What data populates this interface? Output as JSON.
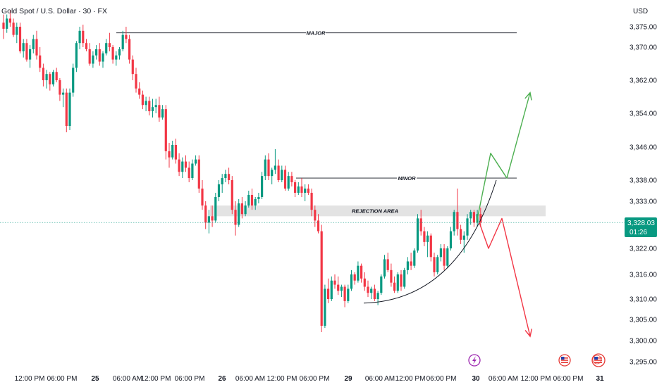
{
  "header": {
    "title": "Gold Spot / U.S. Dollar · 30 · FX",
    "currency": "USD"
  },
  "current_price": {
    "price_label": "3,328.03",
    "countdown": "01:26",
    "value": 3328.03,
    "color": "#089981"
  },
  "events": {
    "flash_icon_color": "#9c27b0",
    "flag_icon_color": "#e53935"
  },
  "chart_data": {
    "type": "candlestick",
    "symbol": "XAUUSD",
    "interval": "30",
    "up_color": "#089981",
    "down_color": "#f23645",
    "y_axis": {
      "ticks": [
        {
          "label": "3,375.00",
          "value": 3375.0
        },
        {
          "label": "3,370.00",
          "value": 3370.0
        },
        {
          "label": "3,362.00",
          "value": 3362.0
        },
        {
          "label": "3,354.00",
          "value": 3354.0
        },
        {
          "label": "3,346.00",
          "value": 3346.0
        },
        {
          "label": "3,338.00",
          "value": 3338.0
        },
        {
          "label": "3,333.00",
          "value": 3333.0
        },
        {
          "label": "3,322.00",
          "value": 3322.0
        },
        {
          "label": "3,316.00",
          "value": 3316.0
        },
        {
          "label": "3,310.00",
          "value": 3310.0
        },
        {
          "label": "3,305.00",
          "value": 3305.0
        },
        {
          "label": "3,300.00",
          "value": 3300.0
        },
        {
          "label": "3,295.00",
          "value": 3295.0
        }
      ]
    },
    "x_axis": {
      "ticks": [
        {
          "label": "12:00 PM",
          "bold": false
        },
        {
          "label": "06:00 PM",
          "bold": false
        },
        {
          "label": "25",
          "bold": true
        },
        {
          "label": "06:00 AM",
          "bold": false
        },
        {
          "label": "12:00 PM",
          "bold": false
        },
        {
          "label": "06:00 PM",
          "bold": false
        },
        {
          "label": "26",
          "bold": true
        },
        {
          "label": "06:00 AM",
          "bold": false
        },
        {
          "label": "12:00 PM",
          "bold": false
        },
        {
          "label": "06:00 PM",
          "bold": false
        },
        {
          "label": "29",
          "bold": true
        },
        {
          "label": "06:00 AM",
          "bold": false
        },
        {
          "label": "12:00 PM",
          "bold": false
        },
        {
          "label": "06:00 PM",
          "bold": false
        },
        {
          "label": "30",
          "bold": true
        },
        {
          "label": "06:00 AM",
          "bold": false
        },
        {
          "label": "12:00 PM",
          "bold": false
        },
        {
          "label": "06:00 PM",
          "bold": false
        },
        {
          "label": "31",
          "bold": true
        }
      ]
    },
    "levels": [
      {
        "label": "MAJOR",
        "value": 3373.5
      },
      {
        "label": "MINOR",
        "value": 3338.5
      }
    ],
    "zone": {
      "label": "REJECTION AREA",
      "low": 3329.5,
      "high": 3332.0
    },
    "projection_up": {
      "color": "#4caf50",
      "points": [
        3328.0,
        3344.5,
        3338.5,
        3359.0
      ]
    },
    "projection_down": {
      "color": "#f23645",
      "points": [
        3328.0,
        3322.0,
        3329.0,
        3301.0
      ]
    },
    "trend_curve": {
      "start": 3309.0,
      "end": 3338.0
    },
    "candles": [
      [
        3376.0,
        3378.0,
        3372.0,
        3374.5
      ],
      [
        3374.5,
        3378.0,
        3373.5,
        3377.0
      ],
      [
        3377.0,
        3379.0,
        3375.0,
        3376.0
      ],
      [
        3376.0,
        3377.0,
        3372.5,
        3373.0
      ],
      [
        3373.0,
        3376.0,
        3371.0,
        3375.0
      ],
      [
        3375.0,
        3376.0,
        3368.5,
        3369.0
      ],
      [
        3369.0,
        3372.0,
        3367.5,
        3371.0
      ],
      [
        3371.0,
        3372.0,
        3366.5,
        3367.0
      ],
      [
        3367.0,
        3370.5,
        3365.0,
        3369.5
      ],
      [
        3369.5,
        3373.0,
        3368.5,
        3372.0
      ],
      [
        3372.0,
        3374.0,
        3367.0,
        3368.0
      ],
      [
        3368.0,
        3370.0,
        3364.0,
        3365.0
      ],
      [
        3365.0,
        3366.0,
        3360.5,
        3362.0
      ],
      [
        3362.0,
        3364.5,
        3360.0,
        3363.5
      ],
      [
        3363.5,
        3364.0,
        3359.5,
        3361.0
      ],
      [
        3361.0,
        3364.5,
        3360.5,
        3364.0
      ],
      [
        3364.0,
        3365.0,
        3361.5,
        3362.0
      ],
      [
        3362.0,
        3362.5,
        3357.0,
        3358.5
      ],
      [
        3358.5,
        3360.0,
        3355.5,
        3359.0
      ],
      [
        3359.0,
        3360.0,
        3349.5,
        3351.0
      ],
      [
        3351.0,
        3360.0,
        3350.0,
        3359.0
      ],
      [
        3359.0,
        3366.0,
        3358.0,
        3365.0
      ],
      [
        3365.0,
        3371.5,
        3364.0,
        3371.0
      ],
      [
        3371.0,
        3375.0,
        3369.5,
        3374.0
      ],
      [
        3374.0,
        3375.5,
        3370.0,
        3371.0
      ],
      [
        3371.0,
        3372.0,
        3369.0,
        3369.5
      ],
      [
        3369.5,
        3371.0,
        3365.5,
        3366.0
      ],
      [
        3366.0,
        3369.0,
        3365.0,
        3368.0
      ],
      [
        3368.0,
        3370.5,
        3367.0,
        3369.5
      ],
      [
        3369.5,
        3371.0,
        3365.5,
        3366.5
      ],
      [
        3366.5,
        3369.0,
        3365.0,
        3368.5
      ],
      [
        3368.5,
        3372.0,
        3368.0,
        3371.0
      ],
      [
        3371.0,
        3373.5,
        3369.0,
        3370.0
      ],
      [
        3370.0,
        3370.5,
        3366.0,
        3367.0
      ],
      [
        3367.0,
        3369.0,
        3365.5,
        3368.0
      ],
      [
        3368.0,
        3370.0,
        3367.0,
        3369.5
      ],
      [
        3369.5,
        3374.0,
        3369.0,
        3373.0
      ],
      [
        3373.0,
        3375.0,
        3371.0,
        3372.0
      ],
      [
        3372.0,
        3373.0,
        3366.0,
        3367.0
      ],
      [
        3367.0,
        3368.0,
        3362.0,
        3363.5
      ],
      [
        3363.5,
        3365.0,
        3359.0,
        3360.0
      ],
      [
        3360.0,
        3361.5,
        3357.5,
        3358.5
      ],
      [
        3358.5,
        3359.5,
        3355.0,
        3356.0
      ],
      [
        3356.0,
        3358.0,
        3354.5,
        3357.0
      ],
      [
        3357.0,
        3358.0,
        3353.5,
        3354.5
      ],
      [
        3354.5,
        3357.5,
        3353.0,
        3355.5
      ],
      [
        3355.5,
        3357.5,
        3354.0,
        3356.0
      ],
      [
        3356.0,
        3358.0,
        3352.0,
        3353.0
      ],
      [
        3353.0,
        3356.0,
        3352.5,
        3355.0
      ],
      [
        3355.0,
        3356.0,
        3343.0,
        3345.0
      ],
      [
        3345.0,
        3347.0,
        3341.0,
        3343.5
      ],
      [
        3343.5,
        3347.5,
        3343.0,
        3346.5
      ],
      [
        3346.5,
        3348.0,
        3342.0,
        3343.0
      ],
      [
        3343.0,
        3344.5,
        3339.0,
        3340.0
      ],
      [
        3340.0,
        3343.5,
        3338.5,
        3342.5
      ],
      [
        3342.5,
        3344.0,
        3340.0,
        3341.0
      ],
      [
        3341.0,
        3342.5,
        3337.5,
        3338.5
      ],
      [
        3338.5,
        3343.0,
        3338.0,
        3342.0
      ],
      [
        3342.0,
        3344.0,
        3341.5,
        3343.0
      ],
      [
        3343.0,
        3344.0,
        3335.0,
        3336.0
      ],
      [
        3336.0,
        3338.0,
        3331.0,
        3332.0
      ],
      [
        3332.0,
        3333.0,
        3326.5,
        3328.0
      ],
      [
        3328.0,
        3331.0,
        3325.5,
        3329.5
      ],
      [
        3329.5,
        3332.0,
        3327.0,
        3328.5
      ],
      [
        3328.5,
        3335.0,
        3328.0,
        3334.0
      ],
      [
        3334.0,
        3338.0,
        3333.0,
        3337.0
      ],
      [
        3337.0,
        3339.5,
        3335.0,
        3338.5
      ],
      [
        3338.5,
        3340.5,
        3337.5,
        3339.5
      ],
      [
        3339.5,
        3341.0,
        3337.0,
        3338.0
      ],
      [
        3338.0,
        3339.0,
        3330.0,
        3331.0
      ],
      [
        3331.0,
        3333.0,
        3325.0,
        3327.5
      ],
      [
        3327.5,
        3333.5,
        3327.0,
        3332.5
      ],
      [
        3332.5,
        3334.0,
        3329.0,
        3330.0
      ],
      [
        3330.0,
        3333.0,
        3329.5,
        3332.0
      ],
      [
        3332.0,
        3335.5,
        3331.5,
        3334.5
      ],
      [
        3334.5,
        3336.0,
        3331.0,
        3332.0
      ],
      [
        3332.0,
        3334.0,
        3331.0,
        3333.5
      ],
      [
        3333.5,
        3335.0,
        3332.5,
        3334.0
      ],
      [
        3334.0,
        3340.0,
        3333.5,
        3339.0
      ],
      [
        3339.0,
        3344.0,
        3338.0,
        3343.0
      ],
      [
        3343.0,
        3344.5,
        3338.0,
        3339.0
      ],
      [
        3339.0,
        3341.0,
        3337.0,
        3340.5
      ],
      [
        3340.5,
        3345.5,
        3339.5,
        3341.5
      ],
      [
        3341.5,
        3343.0,
        3337.5,
        3338.0
      ],
      [
        3338.0,
        3341.5,
        3337.5,
        3340.5
      ],
      [
        3340.5,
        3341.5,
        3335.5,
        3336.0
      ],
      [
        3336.0,
        3340.0,
        3335.5,
        3339.0
      ],
      [
        3339.0,
        3340.0,
        3336.5,
        3337.5
      ],
      [
        3337.5,
        3338.0,
        3334.0,
        3335.0
      ],
      [
        3335.0,
        3337.5,
        3334.5,
        3336.5
      ],
      [
        3336.5,
        3338.5,
        3334.0,
        3335.0
      ],
      [
        3335.0,
        3337.0,
        3333.0,
        3336.0
      ],
      [
        3336.0,
        3337.0,
        3334.5,
        3335.0
      ],
      [
        3335.0,
        3336.0,
        3329.5,
        3331.0
      ],
      [
        3331.0,
        3332.0,
        3327.0,
        3328.5
      ],
      [
        3328.5,
        3330.0,
        3325.5,
        3326.0
      ],
      [
        3326.0,
        3327.5,
        3302.0,
        3303.5
      ],
      [
        3303.5,
        3313.5,
        3303.0,
        3312.5
      ],
      [
        3312.5,
        3315.0,
        3309.0,
        3310.0
      ],
      [
        3310.0,
        3315.5,
        3309.5,
        3314.5
      ],
      [
        3314.5,
        3316.0,
        3312.5,
        3313.5
      ],
      [
        3313.5,
        3315.5,
        3311.0,
        3312.0
      ],
      [
        3312.0,
        3313.5,
        3310.5,
        3313.0
      ],
      [
        3313.0,
        3313.5,
        3308.0,
        3309.5
      ],
      [
        3309.5,
        3313.5,
        3309.0,
        3312.5
      ],
      [
        3312.5,
        3317.0,
        3312.0,
        3316.0
      ],
      [
        3316.0,
        3316.5,
        3313.5,
        3314.5
      ],
      [
        3314.5,
        3319.0,
        3314.0,
        3318.0
      ],
      [
        3318.0,
        3318.5,
        3314.0,
        3315.0
      ],
      [
        3315.0,
        3316.5,
        3312.0,
        3313.0
      ],
      [
        3313.0,
        3314.5,
        3310.5,
        3311.5
      ],
      [
        3311.5,
        3313.0,
        3310.0,
        3312.5
      ],
      [
        3312.5,
        3313.5,
        3309.5,
        3310.0
      ],
      [
        3310.0,
        3312.0,
        3308.5,
        3311.5
      ],
      [
        3311.5,
        3316.0,
        3311.0,
        3315.5
      ],
      [
        3315.5,
        3320.5,
        3315.0,
        3319.5
      ],
      [
        3319.5,
        3321.0,
        3316.5,
        3317.0
      ],
      [
        3317.0,
        3318.5,
        3313.0,
        3314.0
      ],
      [
        3314.0,
        3315.5,
        3311.5,
        3312.0
      ],
      [
        3312.0,
        3316.5,
        3311.5,
        3316.0
      ],
      [
        3316.0,
        3317.0,
        3312.0,
        3313.0
      ],
      [
        3313.0,
        3317.5,
        3312.5,
        3317.0
      ],
      [
        3317.0,
        3320.0,
        3316.0,
        3319.0
      ],
      [
        3319.0,
        3321.0,
        3317.0,
        3318.0
      ],
      [
        3318.0,
        3322.0,
        3317.5,
        3321.5
      ],
      [
        3321.5,
        3330.0,
        3321.0,
        3329.0
      ],
      [
        3329.0,
        3331.0,
        3325.0,
        3326.0
      ],
      [
        3326.0,
        3327.0,
        3322.5,
        3323.5
      ],
      [
        3323.5,
        3326.0,
        3320.0,
        3325.0
      ],
      [
        3325.0,
        3325.5,
        3319.0,
        3320.0
      ],
      [
        3320.0,
        3321.0,
        3315.5,
        3316.5
      ],
      [
        3316.5,
        3320.5,
        3316.0,
        3320.0
      ],
      [
        3320.0,
        3323.0,
        3319.0,
        3322.0
      ],
      [
        3322.0,
        3323.0,
        3317.0,
        3318.0
      ],
      [
        3318.0,
        3322.5,
        3317.5,
        3322.0
      ],
      [
        3322.0,
        3327.0,
        3321.5,
        3326.0
      ],
      [
        3326.0,
        3331.0,
        3325.0,
        3330.5
      ],
      [
        3330.5,
        3336.0,
        3325.0,
        3326.5
      ],
      [
        3326.5,
        3327.5,
        3323.0,
        3324.0
      ],
      [
        3324.0,
        3326.0,
        3321.0,
        3325.0
      ],
      [
        3325.0,
        3330.0,
        3324.0,
        3329.0
      ],
      [
        3329.0,
        3331.0,
        3327.5,
        3330.5
      ],
      [
        3330.5,
        3331.0,
        3327.0,
        3328.0
      ],
      [
        3328.0,
        3331.0,
        3327.0,
        3330.0
      ],
      [
        3330.0,
        3331.5,
        3327.0,
        3328.03
      ]
    ]
  }
}
